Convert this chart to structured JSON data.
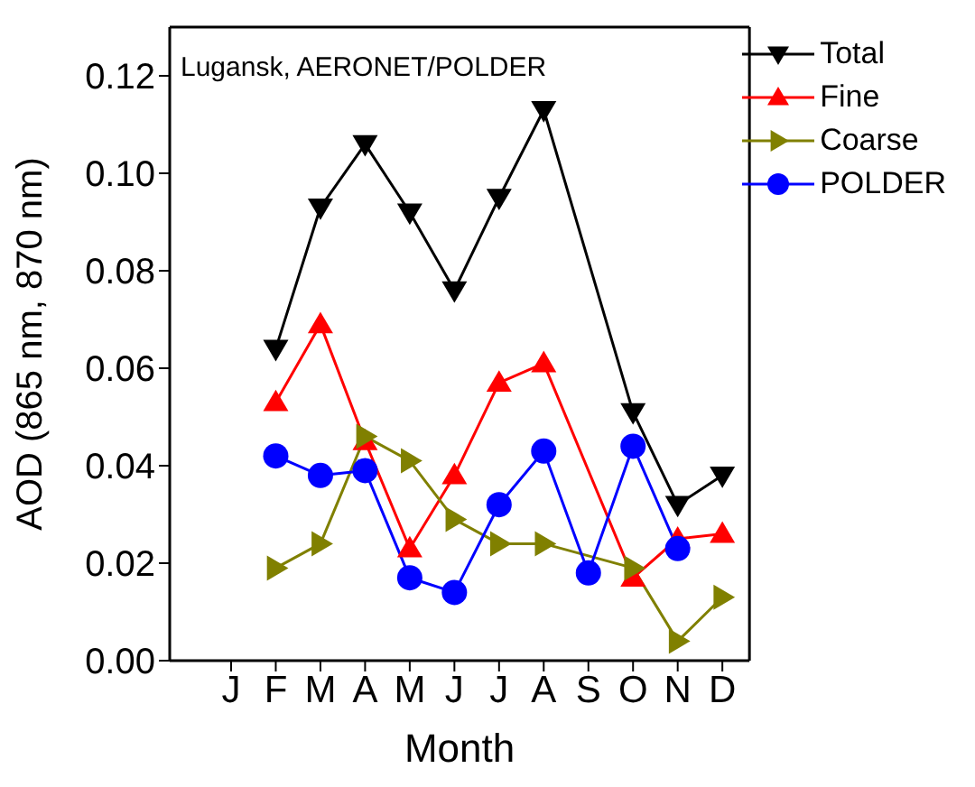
{
  "chart_data": {
    "type": "line",
    "xlabel": "Month",
    "ylabel": "AOD (865 nm, 870 nm)",
    "annotations": [
      "Lugansk, AERONET/POLDER"
    ],
    "categories": [
      "J",
      "F",
      "M",
      "A",
      "M",
      "J",
      "J",
      "A",
      "S",
      "O",
      "N",
      "D"
    ],
    "ylim": [
      0,
      0.13
    ],
    "yticks": [
      {
        "value": 0,
        "label": "0.00"
      },
      {
        "value": 0.02,
        "label": "0.02"
      },
      {
        "value": 0.04,
        "label": "0.04"
      },
      {
        "value": 0.06,
        "label": "0.06"
      },
      {
        "value": 0.08,
        "label": "0.08"
      },
      {
        "value": 0.1,
        "label": "0.10"
      },
      {
        "value": 0.12,
        "label": "0.12"
      }
    ],
    "legend": "top right",
    "series": [
      {
        "name": "Total",
        "color": "#000000",
        "marker": "triangle-down",
        "values": [
          null,
          0.064,
          0.093,
          0.106,
          0.092,
          0.076,
          0.095,
          0.113,
          null,
          0.051,
          0.032,
          0.038
        ]
      },
      {
        "name": "Fine",
        "color": "#ff0000",
        "marker": "triangle",
        "values": [
          null,
          0.053,
          0.069,
          0.045,
          0.023,
          0.038,
          0.057,
          0.061,
          null,
          0.017,
          0.025,
          0.026
        ]
      },
      {
        "name": "Coarse",
        "color": "#808000",
        "marker": "triangle-right",
        "values": [
          null,
          0.019,
          0.024,
          0.046,
          0.041,
          0.029,
          0.024,
          0.024,
          null,
          0.019,
          0.004,
          0.013
        ]
      },
      {
        "name": "POLDER",
        "color": "#0000ff",
        "marker": "circle",
        "values": [
          null,
          0.042,
          0.038,
          0.039,
          0.017,
          0.014,
          0.032,
          0.043,
          0.018,
          0.044,
          0.023,
          null
        ]
      }
    ]
  }
}
